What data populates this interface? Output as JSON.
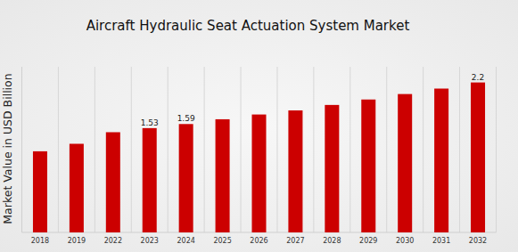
{
  "chart_data": {
    "type": "bar",
    "title": "Aircraft Hydraulic Seat Actuation System Market",
    "y_label": "Market Value in USD Billion",
    "categories": [
      "2018",
      "2019",
      "2022",
      "2023",
      "2024",
      "2025",
      "2026",
      "2027",
      "2028",
      "2029",
      "2030",
      "2031",
      "2032"
    ],
    "values": [
      1.19,
      1.3,
      1.47,
      1.53,
      1.59,
      1.66,
      1.73,
      1.79,
      1.87,
      1.95,
      2.03,
      2.11,
      2.2
    ],
    "value_labels": [
      null,
      null,
      null,
      "1.53",
      "1.59",
      null,
      null,
      null,
      null,
      null,
      null,
      null,
      "2.2"
    ],
    "color": "#cc0000",
    "ylim": [
      0,
      2.43
    ],
    "grid": true,
    "data_labels": true,
    "tick_labels": "x"
  }
}
